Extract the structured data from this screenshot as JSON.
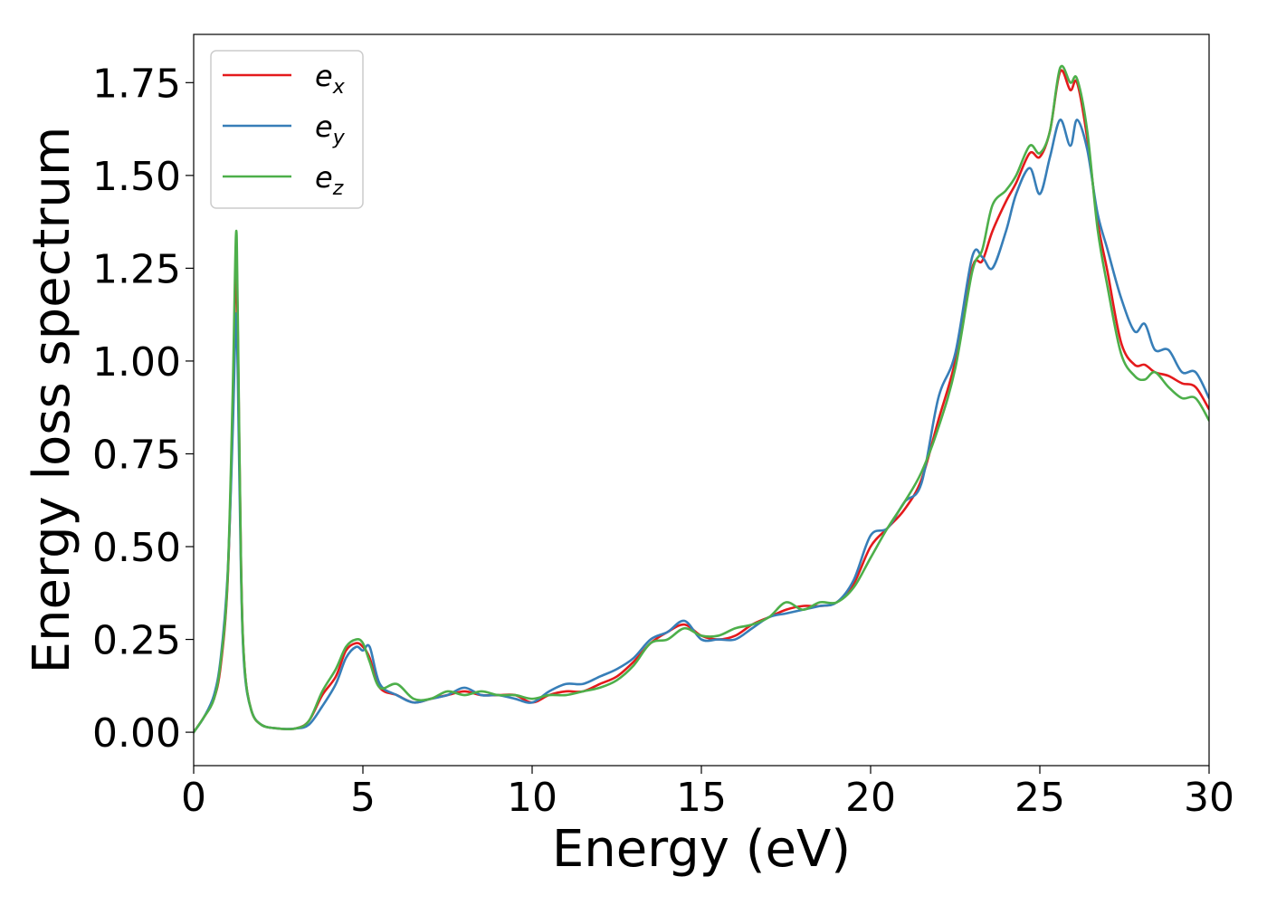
{
  "chart_data": {
    "type": "line",
    "title": "",
    "xlabel": "Energy (eV)",
    "ylabel": "Energy loss spectrum",
    "xlim": [
      0,
      30
    ],
    "ylim": [
      -0.09,
      1.88
    ],
    "xticks": [
      0,
      5,
      10,
      15,
      20,
      25,
      30
    ],
    "xtick_labels": [
      "0",
      "5",
      "10",
      "15",
      "20",
      "25",
      "30"
    ],
    "yticks": [
      0.0,
      0.25,
      0.5,
      0.75,
      1.0,
      1.25,
      1.5,
      1.75
    ],
    "ytick_labels": [
      "0.00",
      "0.25",
      "0.50",
      "0.75",
      "1.00",
      "1.25",
      "1.50",
      "1.75"
    ],
    "grid": false,
    "legend_position": "upper-left",
    "series": [
      {
        "name": "e_x",
        "label_base": "e",
        "label_sub": "x",
        "color": "#e41a1c",
        "x": [
          0,
          0.3,
          0.6,
          0.8,
          1.0,
          1.15,
          1.25,
          1.3,
          1.4,
          1.5,
          1.7,
          2.0,
          2.5,
          3.0,
          3.4,
          3.8,
          4.2,
          4.5,
          4.8,
          5.0,
          5.2,
          5.5,
          6.0,
          6.5,
          7.0,
          7.5,
          8.0,
          8.5,
          9.0,
          9.5,
          10.0,
          10.5,
          11.0,
          11.5,
          12.0,
          12.5,
          13.0,
          13.5,
          14.0,
          14.5,
          15.0,
          15.5,
          16.0,
          16.5,
          17.0,
          17.5,
          18.0,
          18.5,
          19.0,
          19.5,
          20.0,
          20.5,
          21.0,
          21.5,
          22.0,
          22.5,
          23.0,
          23.3,
          23.6,
          24.0,
          24.3,
          24.7,
          25.0,
          25.3,
          25.6,
          25.9,
          26.1,
          26.4,
          26.7,
          27.0,
          27.4,
          27.8,
          28.1,
          28.4,
          28.8,
          29.2,
          29.6,
          30.0
        ],
        "y": [
          0.0,
          0.04,
          0.09,
          0.18,
          0.4,
          0.85,
          1.26,
          1.1,
          0.45,
          0.18,
          0.06,
          0.02,
          0.01,
          0.01,
          0.03,
          0.1,
          0.15,
          0.22,
          0.24,
          0.23,
          0.2,
          0.12,
          0.1,
          0.08,
          0.09,
          0.1,
          0.11,
          0.1,
          0.1,
          0.1,
          0.08,
          0.1,
          0.11,
          0.11,
          0.13,
          0.15,
          0.19,
          0.24,
          0.27,
          0.29,
          0.26,
          0.25,
          0.26,
          0.29,
          0.31,
          0.33,
          0.34,
          0.34,
          0.35,
          0.4,
          0.5,
          0.55,
          0.6,
          0.68,
          0.84,
          1.0,
          1.25,
          1.27,
          1.35,
          1.43,
          1.48,
          1.56,
          1.55,
          1.62,
          1.78,
          1.73,
          1.75,
          1.6,
          1.38,
          1.24,
          1.05,
          0.99,
          0.99,
          0.97,
          0.96,
          0.94,
          0.93,
          0.87
        ]
      },
      {
        "name": "e_y",
        "label_base": "e",
        "label_sub": "y",
        "color": "#377eb8",
        "x": [
          0,
          0.3,
          0.6,
          0.8,
          1.0,
          1.15,
          1.25,
          1.3,
          1.4,
          1.5,
          1.7,
          2.0,
          2.5,
          3.0,
          3.4,
          3.8,
          4.2,
          4.5,
          4.8,
          5.0,
          5.2,
          5.5,
          6.0,
          6.5,
          7.0,
          7.5,
          8.0,
          8.5,
          9.0,
          9.5,
          10.0,
          10.5,
          11.0,
          11.5,
          12.0,
          12.5,
          13.0,
          13.5,
          14.0,
          14.5,
          15.0,
          15.5,
          16.0,
          16.5,
          17.0,
          17.5,
          18.0,
          18.5,
          19.0,
          19.5,
          20.0,
          20.5,
          21.0,
          21.5,
          22.0,
          22.5,
          23.0,
          23.3,
          23.6,
          24.0,
          24.3,
          24.7,
          25.0,
          25.3,
          25.6,
          25.9,
          26.1,
          26.4,
          26.7,
          27.0,
          27.4,
          27.8,
          28.1,
          28.4,
          28.8,
          29.2,
          29.6,
          30.0
        ],
        "y": [
          0.0,
          0.04,
          0.1,
          0.2,
          0.42,
          0.8,
          1.12,
          0.98,
          0.42,
          0.17,
          0.06,
          0.02,
          0.01,
          0.01,
          0.02,
          0.07,
          0.13,
          0.2,
          0.23,
          0.22,
          0.23,
          0.13,
          0.1,
          0.08,
          0.09,
          0.1,
          0.12,
          0.1,
          0.1,
          0.09,
          0.08,
          0.11,
          0.13,
          0.13,
          0.15,
          0.17,
          0.2,
          0.25,
          0.27,
          0.3,
          0.25,
          0.25,
          0.25,
          0.28,
          0.31,
          0.32,
          0.33,
          0.34,
          0.35,
          0.41,
          0.53,
          0.55,
          0.62,
          0.67,
          0.9,
          1.02,
          1.28,
          1.28,
          1.25,
          1.35,
          1.45,
          1.52,
          1.45,
          1.55,
          1.65,
          1.58,
          1.65,
          1.57,
          1.4,
          1.3,
          1.17,
          1.08,
          1.1,
          1.03,
          1.03,
          0.97,
          0.97,
          0.9
        ]
      },
      {
        "name": "e_z",
        "label_base": "e",
        "label_sub": "z",
        "color": "#4daf4a",
        "x": [
          0,
          0.3,
          0.6,
          0.8,
          1.0,
          1.15,
          1.25,
          1.3,
          1.4,
          1.5,
          1.7,
          2.0,
          2.5,
          3.0,
          3.4,
          3.8,
          4.2,
          4.5,
          4.8,
          5.0,
          5.2,
          5.5,
          6.0,
          6.5,
          7.0,
          7.5,
          8.0,
          8.5,
          9.0,
          9.5,
          10.0,
          10.5,
          11.0,
          11.5,
          12.0,
          12.5,
          13.0,
          13.5,
          14.0,
          14.5,
          15.0,
          15.5,
          16.0,
          16.5,
          17.0,
          17.5,
          18.0,
          18.5,
          19.0,
          19.5,
          20.0,
          20.5,
          21.0,
          21.5,
          22.0,
          22.5,
          23.0,
          23.3,
          23.6,
          24.0,
          24.3,
          24.7,
          25.0,
          25.3,
          25.6,
          25.9,
          26.1,
          26.4,
          26.7,
          27.0,
          27.4,
          27.8,
          28.1,
          28.4,
          28.8,
          29.2,
          29.6,
          30.0
        ],
        "y": [
          0.0,
          0.04,
          0.09,
          0.19,
          0.41,
          0.9,
          1.34,
          1.15,
          0.45,
          0.18,
          0.06,
          0.02,
          0.01,
          0.01,
          0.03,
          0.11,
          0.17,
          0.23,
          0.25,
          0.24,
          0.19,
          0.12,
          0.13,
          0.09,
          0.09,
          0.11,
          0.1,
          0.11,
          0.1,
          0.1,
          0.09,
          0.1,
          0.1,
          0.11,
          0.12,
          0.14,
          0.18,
          0.24,
          0.25,
          0.28,
          0.26,
          0.26,
          0.28,
          0.29,
          0.31,
          0.35,
          0.33,
          0.35,
          0.35,
          0.39,
          0.47,
          0.55,
          0.62,
          0.7,
          0.82,
          0.98,
          1.24,
          1.3,
          1.42,
          1.46,
          1.5,
          1.58,
          1.56,
          1.62,
          1.79,
          1.75,
          1.76,
          1.62,
          1.36,
          1.2,
          1.02,
          0.96,
          0.95,
          0.97,
          0.93,
          0.9,
          0.9,
          0.84
        ]
      }
    ]
  }
}
